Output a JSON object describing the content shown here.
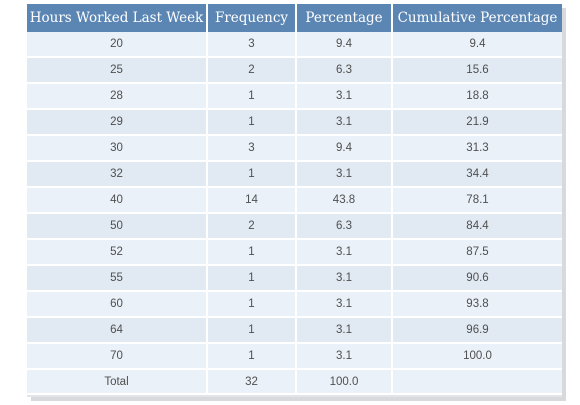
{
  "table": {
    "headers": [
      "Hours Worked Last Week",
      "Frequency",
      "Percentage",
      "Cumulative Percentage"
    ],
    "rows": [
      [
        "20",
        "3",
        "9.4",
        "9.4"
      ],
      [
        "25",
        "2",
        "6.3",
        "15.6"
      ],
      [
        "28",
        "1",
        "3.1",
        "18.8"
      ],
      [
        "29",
        "1",
        "3.1",
        "21.9"
      ],
      [
        "30",
        "3",
        "9.4",
        "31.3"
      ],
      [
        "32",
        "1",
        "3.1",
        "34.4"
      ],
      [
        "40",
        "14",
        "43.8",
        "78.1"
      ],
      [
        "50",
        "2",
        "6.3",
        "84.4"
      ],
      [
        "52",
        "1",
        "3.1",
        "87.5"
      ],
      [
        "55",
        "1",
        "3.1",
        "90.6"
      ],
      [
        "60",
        "1",
        "3.1",
        "93.8"
      ],
      [
        "64",
        "1",
        "3.1",
        "96.9"
      ],
      [
        "70",
        "1",
        "3.1",
        "100.0"
      ]
    ],
    "total": [
      "Total",
      "32",
      "100.0",
      ""
    ]
  },
  "colors": {
    "header_bg": "#5b86b3",
    "header_text": "#ffffff",
    "row_bg": "#eaf1f8",
    "row_bg_alt": "#e1eaf3",
    "cell_text": "#4f4f4f"
  }
}
